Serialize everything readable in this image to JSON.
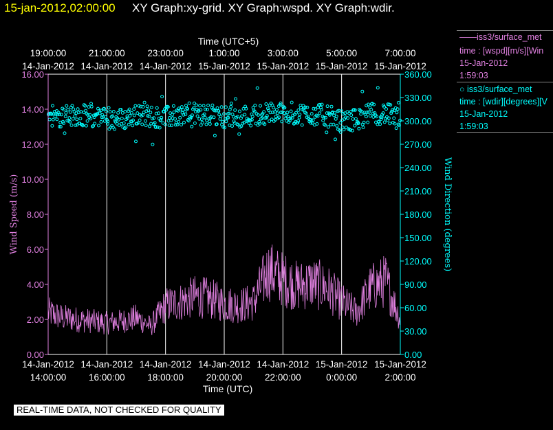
{
  "header": {
    "date_label": "15-jan-2012,02:00:00",
    "title": "XY Graph:xy-grid.  XY Graph:wspd.  XY Graph:wdir."
  },
  "legend": {
    "wspd": {
      "line1": "iss3/surface_met",
      "line2": "time : [wspd][m/s][Win",
      "line3": "15-Jan-2012",
      "line4": "1:59:03",
      "color": "#e080e0"
    },
    "wdir": {
      "line1": "iss3/surface_met",
      "line2": "time : [wdir][degrees][V",
      "line3": "15-Jan-2012",
      "line4": "1:59:03",
      "color": "#00ffff"
    }
  },
  "footer": {
    "qc_text": "REAL-TIME DATA, NOT CHECKED FOR QUALITY"
  },
  "chart_data": {
    "type": "scatter",
    "top_axis": {
      "title": "Time (UTC+5)",
      "ticks": [
        {
          "time": "19:00:00",
          "date": "14-Jan-2012"
        },
        {
          "time": "21:00:00",
          "date": "14-Jan-2012"
        },
        {
          "time": "23:00:00",
          "date": "14-Jan-2012"
        },
        {
          "time": "1:00:00",
          "date": "15-Jan-2012"
        },
        {
          "time": "3:00:00",
          "date": "15-Jan-2012"
        },
        {
          "time": "5:00:00",
          "date": "15-Jan-2012"
        },
        {
          "time": "7:00:00",
          "date": "15-Jan-2012"
        }
      ]
    },
    "bottom_axis": {
      "title": "Time (UTC)",
      "ticks": [
        {
          "date": "14-Jan-2012",
          "time": "14:00:00"
        },
        {
          "date": "14-Jan-2012",
          "time": "16:00:00"
        },
        {
          "date": "14-Jan-2012",
          "time": "18:00:00"
        },
        {
          "date": "14-Jan-2012",
          "time": "20:00:00"
        },
        {
          "date": "14-Jan-2012",
          "time": "22:00:00"
        },
        {
          "date": "15-Jan-2012",
          "time": "0:00:00"
        },
        {
          "date": "15-Jan-2012",
          "time": "2:00:00"
        }
      ]
    },
    "xlim": [
      "2012-01-14 14:00",
      "2012-01-15 02:00"
    ],
    "left_axis": {
      "label": "Wind Speed (m/s)",
      "ylim": [
        0,
        16
      ],
      "ticks": [
        "0.00",
        "2.00",
        "4.00",
        "6.00",
        "8.00",
        "10.00",
        "12.00",
        "14.00",
        "16.00"
      ]
    },
    "right_axis": {
      "label": "Wind Direction (degrees)",
      "ylim": [
        0,
        360
      ],
      "ticks": [
        "0.00",
        "30.00",
        "60.00",
        "90.00",
        "120.00",
        "150.00",
        "180.00",
        "210.00",
        "240.00",
        "270.00",
        "300.00",
        "330.00",
        "360.00"
      ]
    },
    "grid": "vertical",
    "series": [
      {
        "name": "wspd",
        "style": "line",
        "color": "#e080e0",
        "axis": "left",
        "times": [
          "14:00",
          "14:30",
          "15:00",
          "15:30",
          "16:00",
          "16:30",
          "17:00",
          "17:30",
          "18:00",
          "18:30",
          "19:00",
          "19:30",
          "20:00",
          "20:30",
          "21:00",
          "21:30",
          "22:00",
          "22:30",
          "23:00",
          "23:30",
          "00:00",
          "00:30",
          "01:00",
          "01:30",
          "02:00"
        ],
        "values": [
          2.4,
          2.1,
          2.0,
          1.9,
          1.8,
          1.9,
          2.1,
          1.6,
          2.8,
          3.0,
          3.3,
          3.2,
          2.9,
          2.8,
          3.0,
          4.8,
          4.3,
          3.9,
          4.1,
          3.8,
          3.0,
          2.4,
          3.8,
          4.2,
          2.0
        ]
      },
      {
        "name": "wdir",
        "style": "markers",
        "marker": "open-circle",
        "color": "#00ffff",
        "axis": "right",
        "times": [
          "14:00",
          "14:30",
          "15:00",
          "15:30",
          "16:00",
          "16:30",
          "17:00",
          "17:30",
          "18:00",
          "18:30",
          "19:00",
          "19:30",
          "20:00",
          "20:30",
          "21:00",
          "21:30",
          "22:00",
          "22:30",
          "23:00",
          "23:30",
          "00:00",
          "00:30",
          "01:00",
          "01:30",
          "02:00"
        ],
        "values": [
          307,
          306,
          308,
          305,
          303,
          302,
          307,
          306,
          304,
          308,
          309,
          307,
          305,
          306,
          307,
          310,
          311,
          309,
          308,
          307,
          299,
          302,
          309,
          310,
          300
        ]
      }
    ]
  }
}
